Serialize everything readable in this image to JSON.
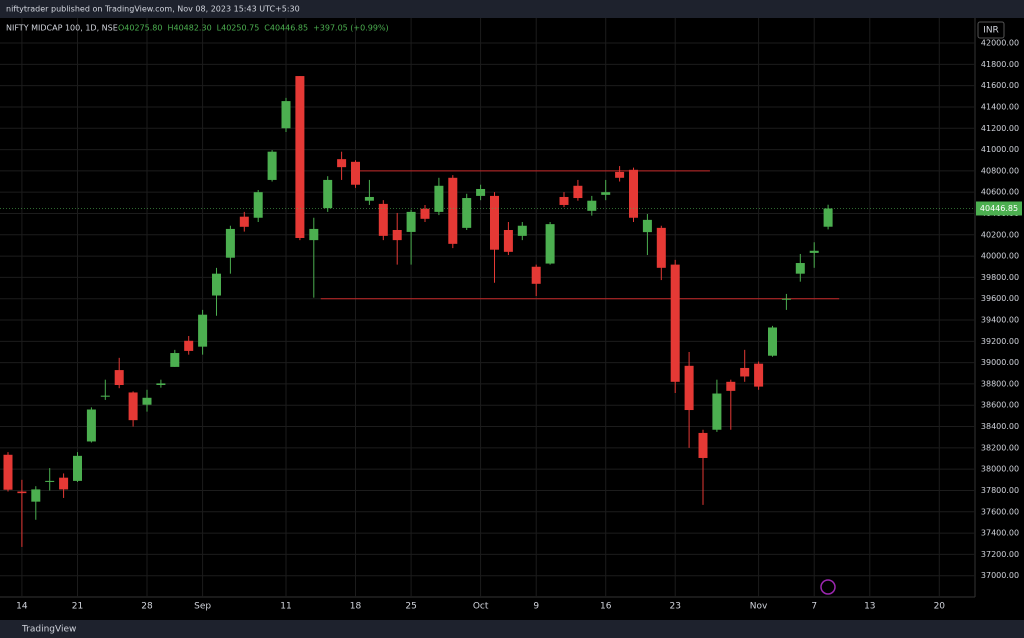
{
  "page": {
    "publisher": "niftytrader published on TradingView.com, Nov 08, 2023 15:43 UTC+5:30",
    "currency": "INR",
    "brand": "TradingView"
  },
  "chart_data": {
    "type": "candlestick",
    "title": "NIFTY MIDCAP 100, 1D, NSE",
    "header_ohlc": [
      "O40275.80",
      "H40482.30",
      "L40250.75",
      "C40446.85",
      "+397.05 (+0.99%)"
    ],
    "up_color": "#4caf50",
    "down_color": "#e53935",
    "level_color": "#c62828",
    "categories": [
      null,
      "14",
      null,
      null,
      null,
      "21",
      null,
      null,
      null,
      null,
      "28",
      null,
      null,
      null,
      "Sep",
      null,
      null,
      null,
      null,
      null,
      "11",
      null,
      null,
      null,
      null,
      "18",
      null,
      null,
      null,
      "25",
      null,
      null,
      null,
      null,
      "Oct",
      null,
      null,
      null,
      "9",
      null,
      null,
      null,
      null,
      "16",
      null,
      null,
      null,
      null,
      "23",
      null,
      null,
      null,
      null,
      null,
      "Nov",
      null,
      null,
      null,
      "7",
      null,
      null,
      null,
      "13",
      null,
      null,
      null,
      null,
      "20",
      null,
      null
    ],
    "open": [
      38135,
      37790,
      37695,
      37880,
      37920,
      37890,
      38260,
      38680,
      38930,
      38720,
      38605,
      38790,
      38960,
      39205,
      39150,
      39630,
      39985,
      40370,
      40360,
      40715,
      41200,
      41690,
      40150,
      40450,
      40910,
      40885,
      40520,
      40490,
      40245,
      40227,
      40445,
      40415,
      40735,
      40265,
      40565,
      40565,
      40245,
      40190,
      39900,
      39930,
      40555,
      40660,
      40425,
      40575,
      40790,
      40810,
      40225,
      40265,
      39920,
      38970,
      38340,
      38370,
      38820,
      38950,
      38990,
      39065,
      39590,
      39835,
      40030,
      40275.8,
      null,
      null,
      null,
      null,
      null,
      null,
      null,
      null,
      null,
      null
    ],
    "high": [
      38160,
      37900,
      37840,
      38010,
      37960,
      38160,
      38580,
      38840,
      39045,
      38730,
      38745,
      38840,
      39120,
      39250,
      39495,
      39890,
      40285,
      40415,
      40620,
      40995,
      41485,
      41690,
      40360,
      40750,
      40980,
      40900,
      40715,
      40525,
      40405,
      40435,
      40480,
      40735,
      40760,
      40585,
      40670,
      40600,
      40320,
      40320,
      39920,
      40320,
      40600,
      40715,
      40565,
      40715,
      40845,
      40830,
      40395,
      40285,
      39965,
      39100,
      38370,
      38840,
      38840,
      39120,
      39010,
      39345,
      39645,
      40020,
      40130,
      40482.3,
      null,
      null,
      null,
      null,
      null,
      null,
      null,
      null,
      null,
      null
    ],
    "low": [
      37790,
      37270,
      37525,
      37800,
      37730,
      37880,
      38250,
      38650,
      38760,
      38400,
      38540,
      38765,
      38960,
      39075,
      39075,
      39440,
      39835,
      40230,
      40320,
      40700,
      41165,
      40150,
      39610,
      40415,
      40715,
      40640,
      40480,
      40150,
      39920,
      39920,
      40320,
      40385,
      40075,
      40245,
      40525,
      39750,
      40010,
      40150,
      39625,
      39920,
      40460,
      40520,
      40380,
      40525,
      40700,
      40320,
      40010,
      39775,
      38715,
      38200,
      37665,
      38350,
      38370,
      38820,
      38745,
      39055,
      39495,
      39760,
      39890,
      40250.75,
      null,
      null,
      null,
      null,
      null,
      null,
      null,
      null,
      null,
      null
    ],
    "close": [
      37807,
      37775,
      37810,
      37890,
      37810,
      38125,
      38560,
      38690,
      38790,
      38460,
      38670,
      38805,
      39090,
      39110,
      39450,
      39835,
      40255,
      40275,
      40600,
      40980,
      41455,
      40170,
      40255,
      40715,
      40835,
      40670,
      40555,
      40190,
      40150,
      40415,
      40350,
      40660,
      40115,
      40545,
      40630,
      40060,
      40040,
      40285,
      39740,
      40300,
      40480,
      40545,
      40520,
      40600,
      40735,
      40360,
      40340,
      39890,
      38820,
      38555,
      38105,
      38710,
      38735,
      38870,
      38775,
      39330,
      39600,
      39935,
      40050,
      40446.85,
      null,
      null,
      null,
      null,
      null,
      null,
      null,
      null,
      null,
      null
    ],
    "levels": [
      40800,
      39600
    ],
    "ylim": [
      36800,
      42235
    ],
    "yticks": [
      {
        "value": 42000,
        "label": "42000.00"
      },
      {
        "value": 41800,
        "label": "41800.00"
      },
      {
        "value": 41600,
        "label": "41600.00"
      },
      {
        "value": 41400,
        "label": "41400.00"
      },
      {
        "value": 41200,
        "label": "41200.00"
      },
      {
        "value": 41000,
        "label": "41000.00"
      },
      {
        "value": 40800,
        "label": "40800.00"
      },
      {
        "value": 40600,
        "label": "40600.00"
      },
      {
        "value": 40400,
        "label": "40400.00"
      },
      {
        "value": 40200,
        "label": "40200.00"
      },
      {
        "value": 40000,
        "label": "40000.00"
      },
      {
        "value": 39800,
        "label": "39800.00"
      },
      {
        "value": 39600,
        "label": "39600.00"
      },
      {
        "value": 39400,
        "label": "39400.00"
      },
      {
        "value": 39200,
        "label": "39200.00"
      },
      {
        "value": 39000,
        "label": "39000.00"
      },
      {
        "value": 38800,
        "label": "38800.00"
      },
      {
        "value": 38600,
        "label": "38600.00"
      },
      {
        "value": 38400,
        "label": "38400.00"
      },
      {
        "value": 38200,
        "label": "38200.00"
      },
      {
        "value": 38000,
        "label": "38000.00"
      },
      {
        "value": 37800,
        "label": "37800.00"
      },
      {
        "value": 37600,
        "label": "37600.00"
      },
      {
        "value": 37400,
        "label": "37400.00"
      },
      {
        "value": 37200,
        "label": "37200.00"
      },
      {
        "value": 37000,
        "label": "37000.00"
      }
    ],
    "grid": true
  }
}
